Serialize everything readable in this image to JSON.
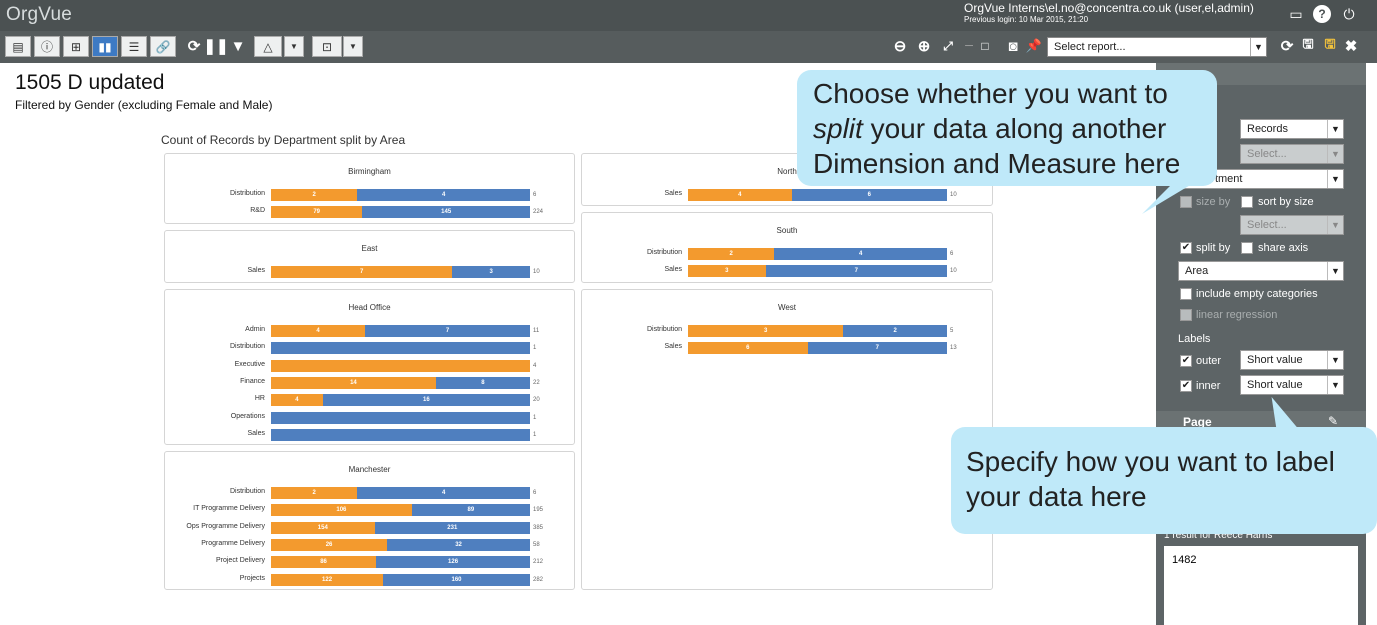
{
  "app": {
    "logo": "OrgVue",
    "user": "OrgVue Interns\\el.no@concentra.co.uk (user,el,admin)",
    "login": "Previous login: 10 Mar 2015, 21:20"
  },
  "toolbar": {
    "report_placeholder": "Select report..."
  },
  "page": {
    "title": "1505 D updated",
    "subtitle": "Filtered by Gender (excluding Female and Male)",
    "chart_title": "Count of Records by Department split by Area"
  },
  "colors": {
    "series_a": "#f39a2e",
    "series_b": "#4f7fbf",
    "callout": "#bfe9f9"
  },
  "chart_data": {
    "type": "bar",
    "title": "Count of Records by Department split by Area",
    "panels": [
      {
        "name": "Birmingham",
        "rows": [
          {
            "label": "Distribution",
            "values": [
              2,
              4
            ],
            "total": 6
          },
          {
            "label": "R&D",
            "values": [
              79,
              145
            ],
            "total": 224
          }
        ]
      },
      {
        "name": "East",
        "rows": [
          {
            "label": "Sales",
            "values": [
              7,
              3
            ],
            "total": 10
          }
        ]
      },
      {
        "name": "Head Office",
        "rows": [
          {
            "label": "Admin",
            "values": [
              4,
              7
            ],
            "total": 11
          },
          {
            "label": "Distribution",
            "values": [
              0,
              1
            ],
            "total": 1
          },
          {
            "label": "Executive",
            "values": [
              4,
              0
            ],
            "total": 4
          },
          {
            "label": "Finance",
            "values": [
              14,
              8
            ],
            "total": 22
          },
          {
            "label": "HR",
            "values": [
              4,
              16
            ],
            "total": 20
          },
          {
            "label": "Operations",
            "values": [
              0,
              1
            ],
            "total": 1
          },
          {
            "label": "Sales",
            "values": [
              0,
              1
            ],
            "total": 1
          }
        ]
      },
      {
        "name": "Manchester",
        "rows": [
          {
            "label": "Distribution",
            "values": [
              2,
              4
            ],
            "total": 6
          },
          {
            "label": "IT Programme Delivery",
            "values": [
              106,
              89
            ],
            "total": 195
          },
          {
            "label": "Ops Programme Delivery",
            "values": [
              154,
              231
            ],
            "total": 385
          },
          {
            "label": "Programme Delivery",
            "values": [
              26,
              32
            ],
            "total": 58
          },
          {
            "label": "Project Delivery",
            "values": [
              86,
              126
            ],
            "total": 212
          },
          {
            "label": "Projects",
            "values": [
              122,
              160
            ],
            "total": 282
          }
        ]
      },
      {
        "name": "North",
        "rows": [
          {
            "label": "Sales",
            "values": [
              4,
              6
            ],
            "total": 10
          }
        ]
      },
      {
        "name": "South",
        "rows": [
          {
            "label": "Distribution",
            "values": [
              2,
              4
            ],
            "total": 6
          },
          {
            "label": "Sales",
            "values": [
              3,
              7
            ],
            "total": 10
          }
        ]
      },
      {
        "name": "West",
        "rows": [
          {
            "label": "Distribution",
            "values": [
              3,
              2
            ],
            "total": 5
          },
          {
            "label": "Sales",
            "values": [
              6,
              7
            ],
            "total": 13
          }
        ]
      }
    ]
  },
  "sidebar": {
    "records": "Records",
    "select1": "Select...",
    "dimension": "Department",
    "size_by": "size by",
    "sort_by_size": "sort by size",
    "select2": "Select...",
    "split_by": "split by",
    "share_axis": "share axis",
    "split_value": "Area",
    "include_empty": "include empty categories",
    "linear_regression": "linear regression",
    "labels_heading": "Labels",
    "outer": "outer",
    "inner": "inner",
    "outer_value": "Short value",
    "inner_value": "Short value",
    "page_heading": "Page",
    "result_text": "1 result for Reece Harris",
    "result_value": "1482"
  },
  "callouts": {
    "split_line1": "Choose whether you want to",
    "split_em": "split",
    "split_line2": " your data along another",
    "split_line3": "Dimension and Measure here",
    "label_line1": "Specify how you want to label",
    "label_line2": "your data here"
  }
}
